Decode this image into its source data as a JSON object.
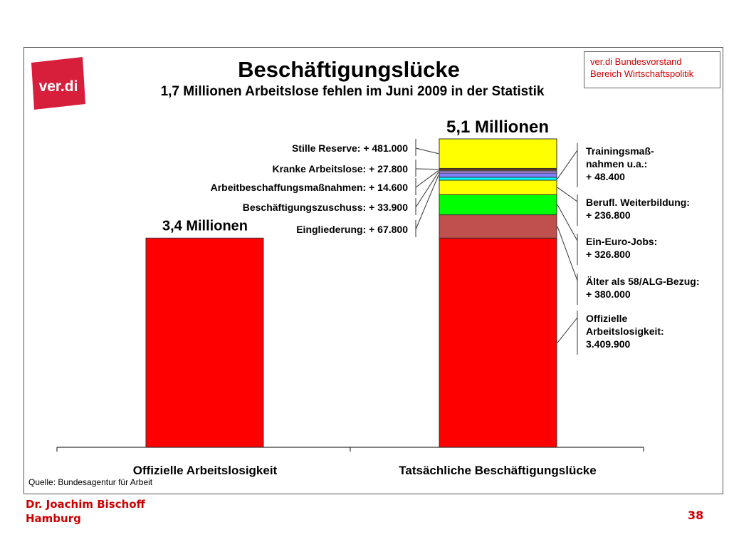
{
  "slide": {
    "title": "Beschäftigungslücke",
    "subtitle": "1,7 Millionen Arbeitslose fehlen im Juni 2009 in der Statistik",
    "org_line1": "ver.di Bundesvorstand",
    "org_line2": "Bereich Wirtschaftspolitik",
    "logo_text": "ver.di",
    "source": "Quelle: Bundesagentur für Arbeit",
    "author_line1": "Dr. Joachim Bischoff",
    "author_line2": "Hamburg",
    "page_number": "38"
  },
  "colors": {
    "brand_red": "#cc0000",
    "logo_red": "#d71f3b",
    "official": "#ff0000",
    "age58": "#c0504d",
    "ein_euro": "#00ff00",
    "weiterbildung": "#ffff00",
    "training": "#00ffff",
    "eingliederung": "#7f7fff",
    "zuschuss": "#cc99ff",
    "abm": "#ffffff",
    "kranke": "#7f3f00",
    "stille": "#ffff00"
  },
  "chart_data": {
    "type": "bar",
    "title": "Beschäftigungslücke",
    "subtitle": "1,7 Millionen Arbeitslose fehlen im Juni 2009 in der Statistik",
    "categories": [
      "Offizielle Arbeitslosigkeit",
      "Tatsächliche Beschäftigungslücke"
    ],
    "totals_labels": [
      "3,4 Millionen",
      "5,1 Millionen"
    ],
    "bar1_value": 3409900,
    "stack": [
      {
        "name": "Offizielle Arbeitslosigkeit",
        "value": 3409900,
        "label_lines": [
          "Offizielle",
          "Arbeitslosigkeit:",
          "3.409.900"
        ],
        "side": "right",
        "color_key": "official"
      },
      {
        "name": "Älter als 58/ALG-Bezug",
        "value": 380000,
        "label_lines": [
          "Älter als 58/ALG-Bezug:",
          "+ 380.000"
        ],
        "side": "right",
        "color_key": "age58"
      },
      {
        "name": "Ein-Euro-Jobs",
        "value": 326800,
        "label_lines": [
          "Ein-Euro-Jobs:",
          "+ 326.800"
        ],
        "side": "right",
        "color_key": "ein_euro"
      },
      {
        "name": "Berufl. Weiterbildung",
        "value": 236800,
        "label_lines": [
          "Berufl. Weiterbildung:",
          "+ 236.800"
        ],
        "side": "right",
        "color_key": "weiterbildung"
      },
      {
        "name": "Trainingsmaßnahmen u.a.",
        "value": 48400,
        "label_lines": [
          "Trainingsmaß-",
          "nahmen u.a.:",
          "+ 48.400"
        ],
        "side": "right",
        "color_key": "training"
      },
      {
        "name": "Eingliederung",
        "value": 67800,
        "label_lines": [
          "Eingliederung: + 67.800"
        ],
        "side": "left",
        "color_key": "eingliederung"
      },
      {
        "name": "Beschäftigungszuschuss",
        "value": 33900,
        "label_lines": [
          "Beschäftigungszuschuss: + 33.900"
        ],
        "side": "left",
        "color_key": "zuschuss"
      },
      {
        "name": "Arbeitbeschaffungsmaßnahmen",
        "value": 14600,
        "label_lines": [
          "Arbeitbeschaffungsmaßnahmen: + 14.600"
        ],
        "side": "left",
        "color_key": "abm"
      },
      {
        "name": "Kranke Arbeitslose",
        "value": 27800,
        "label_lines": [
          "Kranke Arbeitslose:  + 27.800"
        ],
        "side": "left",
        "color_key": "kranke"
      },
      {
        "name": "Stille Reserve",
        "value": 481000,
        "label_lines": [
          "Stille Reserve: + 481.000"
        ],
        "side": "left",
        "color_key": "stille"
      }
    ],
    "ylim": [
      0,
      5400000
    ],
    "grid": false,
    "legend": "none"
  }
}
